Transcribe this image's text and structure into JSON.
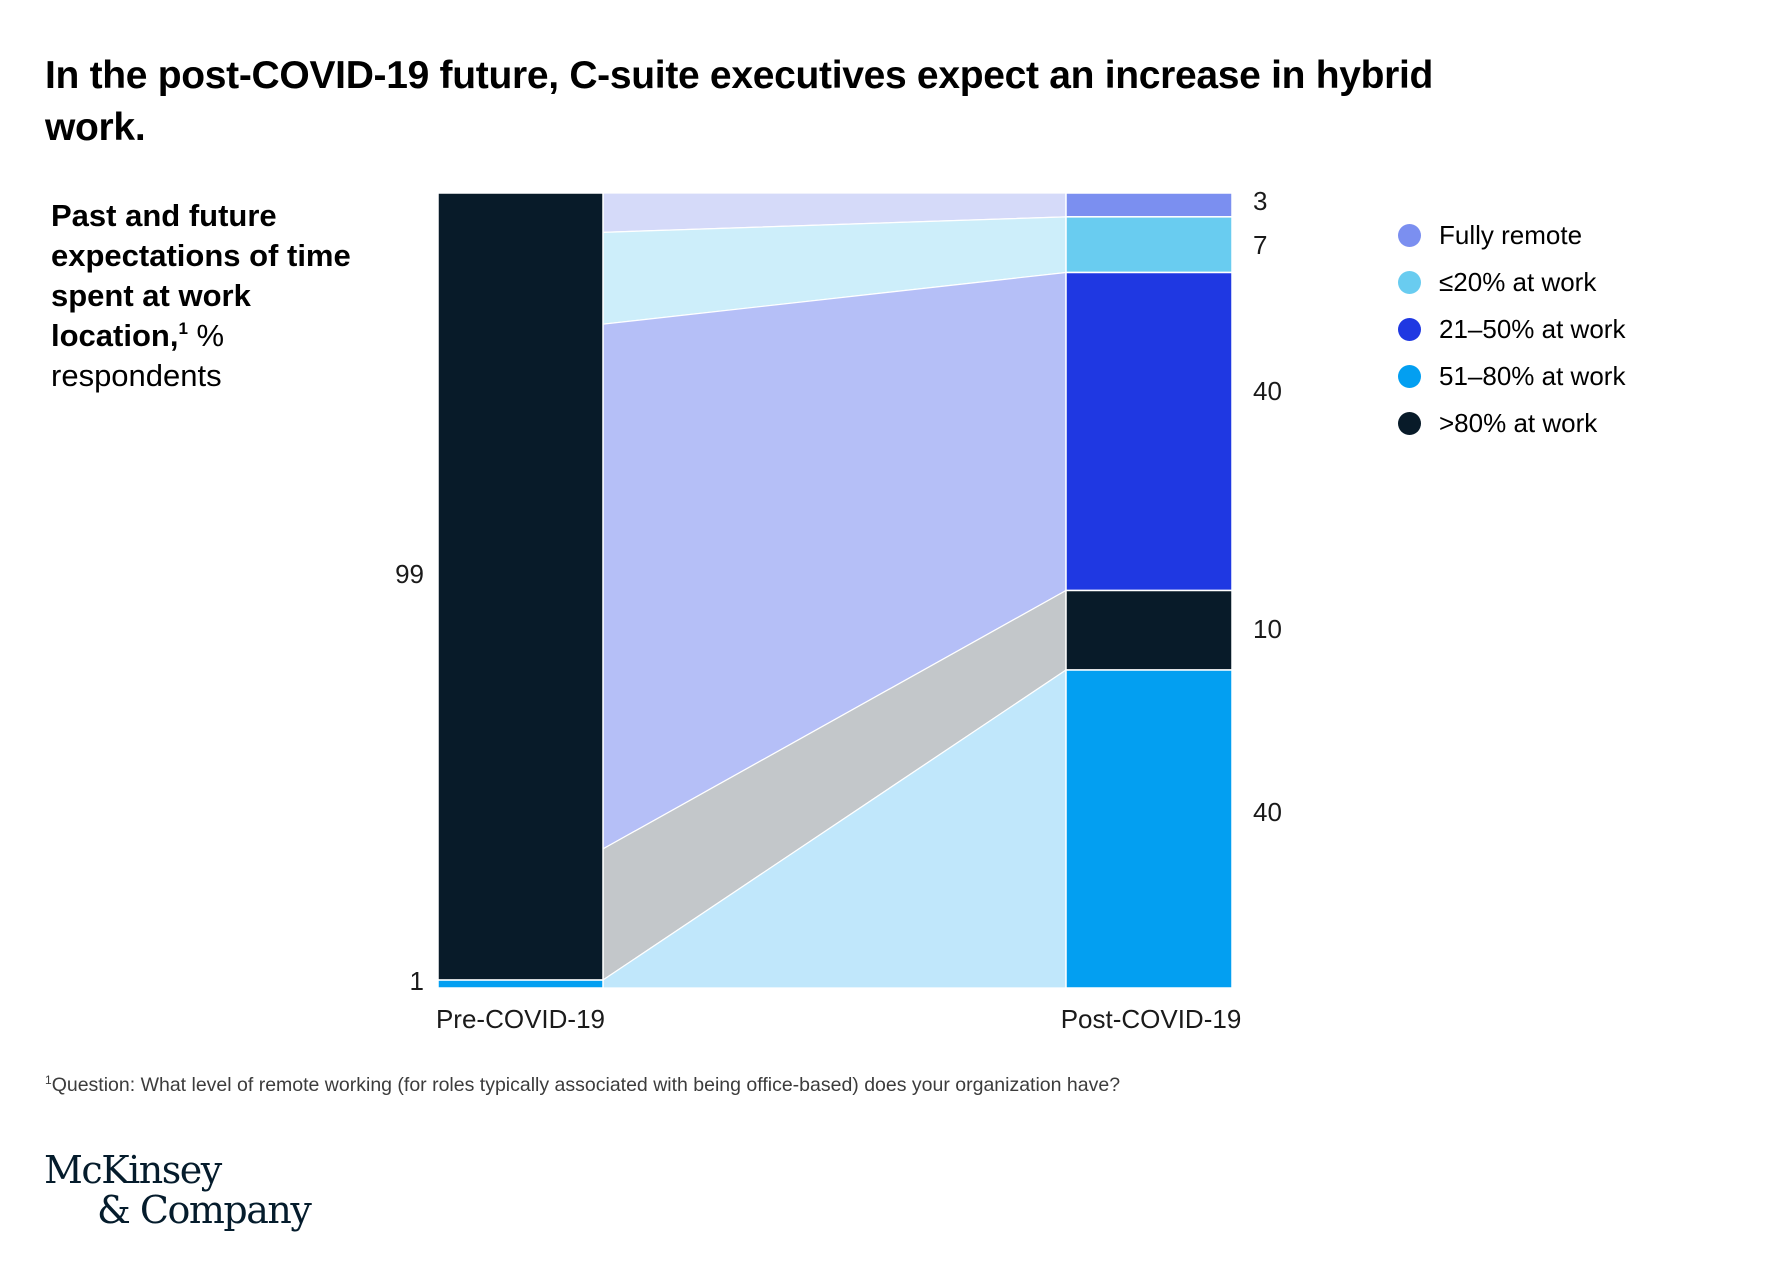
{
  "title": "In the post-COVID-19 future, C-suite executives expect an increase in hybrid work.",
  "subtitle": {
    "bold": "Past and future expectations of time spent at work location,",
    "footnote_mark": "1",
    "unit": " %",
    "rest": "respondents"
  },
  "footnote": {
    "mark": "1",
    "text": "Question: What level of remote working (for roles typically associated with being office-based) does your organization have?"
  },
  "logo": {
    "line1": "McKinsey",
    "line2": "& Company"
  },
  "colors": {
    "fully_remote": "#7b8ff0",
    "le20": "#69ccf0",
    "r21_50": "#1f38e2",
    "r51_80": "#039ff1",
    "gt80": "#081b29",
    "flow_gray": "#c3c7ca"
  },
  "chart_data": {
    "type": "sankey",
    "categories": [
      "Pre-COVID-19",
      "Post-COVID-19"
    ],
    "legend_position": "right",
    "series": [
      {
        "name": "Fully remote",
        "key": "fully_remote",
        "values": [
          0,
          3
        ],
        "labels": [
          "",
          "3"
        ]
      },
      {
        "name": "≤20% at work",
        "key": "le20",
        "values": [
          0,
          7
        ],
        "labels": [
          "",
          "7"
        ]
      },
      {
        "name": "21–50% at work",
        "key": "r21_50",
        "values": [
          0,
          40
        ],
        "labels": [
          "",
          "40"
        ]
      },
      {
        "name": "51–80% at work",
        "key": "r51_80",
        "values": [
          1,
          40
        ],
        "labels": [
          "1",
          "40"
        ]
      },
      {
        "name": ">80% at work",
        "key": "gt80",
        "values": [
          99,
          10
        ],
        "labels": [
          "99",
          "10"
        ]
      }
    ],
    "post_stack_order": [
      "fully_remote",
      "le20",
      "r21_50",
      "gt80",
      "r51_80"
    ],
    "pre_stack_order": [
      "gt80",
      "r51_80"
    ],
    "flows": [
      {
        "from": "gt80",
        "to": "fully_remote",
        "color": "#d5daf9"
      },
      {
        "from": "gt80",
        "to": "le20",
        "color": "#cdeefa"
      },
      {
        "from": "gt80",
        "to": "r21_50",
        "color": "#b5bff7"
      },
      {
        "from": "gt80",
        "to": "gt80",
        "color": "#c3c7ca"
      },
      {
        "from": "r51_80",
        "to": "r51_80",
        "color": "#c0e7fb"
      }
    ]
  }
}
